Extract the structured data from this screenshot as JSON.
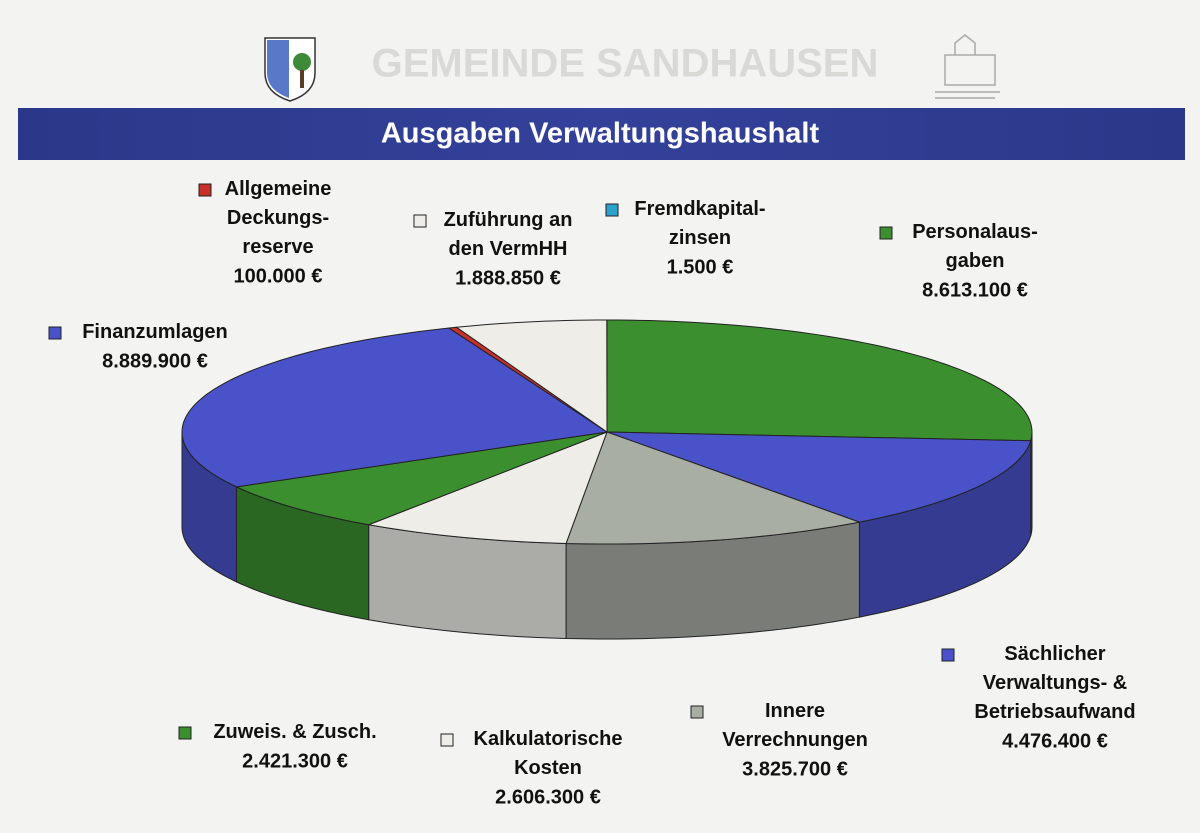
{
  "header": {
    "title": "GEMEINDE SANDHAUSEN"
  },
  "chart_data": {
    "type": "pie",
    "title": "Ausgaben Verwaltungshaushalt",
    "categories": [
      "Personalaus-\ngaben",
      "Sächlicher\nVerwaltungs- &\nBetriebsaufwand",
      "Innere\nVerrechnungen",
      "Kalkulatorische\nKosten",
      "Zuweis. & Zusch.",
      "Finanzumlagen",
      "Allgemeine\nDeckungs-\nreserve",
      "Zuführung an\nden VermHH",
      "Fremdkapital-\nzinsen"
    ],
    "values": [
      8613100,
      4476400,
      3825700,
      2606300,
      2421300,
      8889900,
      100000,
      1888850,
      1500
    ],
    "value_labels": [
      "8.613.100 €",
      "4.476.400 €",
      "3.825.700 €",
      "2.606.300 €",
      "2.421.300 €",
      "8.889.900 €",
      "100.000 €",
      "1.888.850 €",
      "1.500 €"
    ],
    "colors": [
      "#3b8f2f",
      "#4a52c9",
      "#a9aea5",
      "#eeede8",
      "#3b8f2f",
      "#4a52c9",
      "#c8302a",
      "#eeede8",
      "#2aa2cc"
    ]
  }
}
